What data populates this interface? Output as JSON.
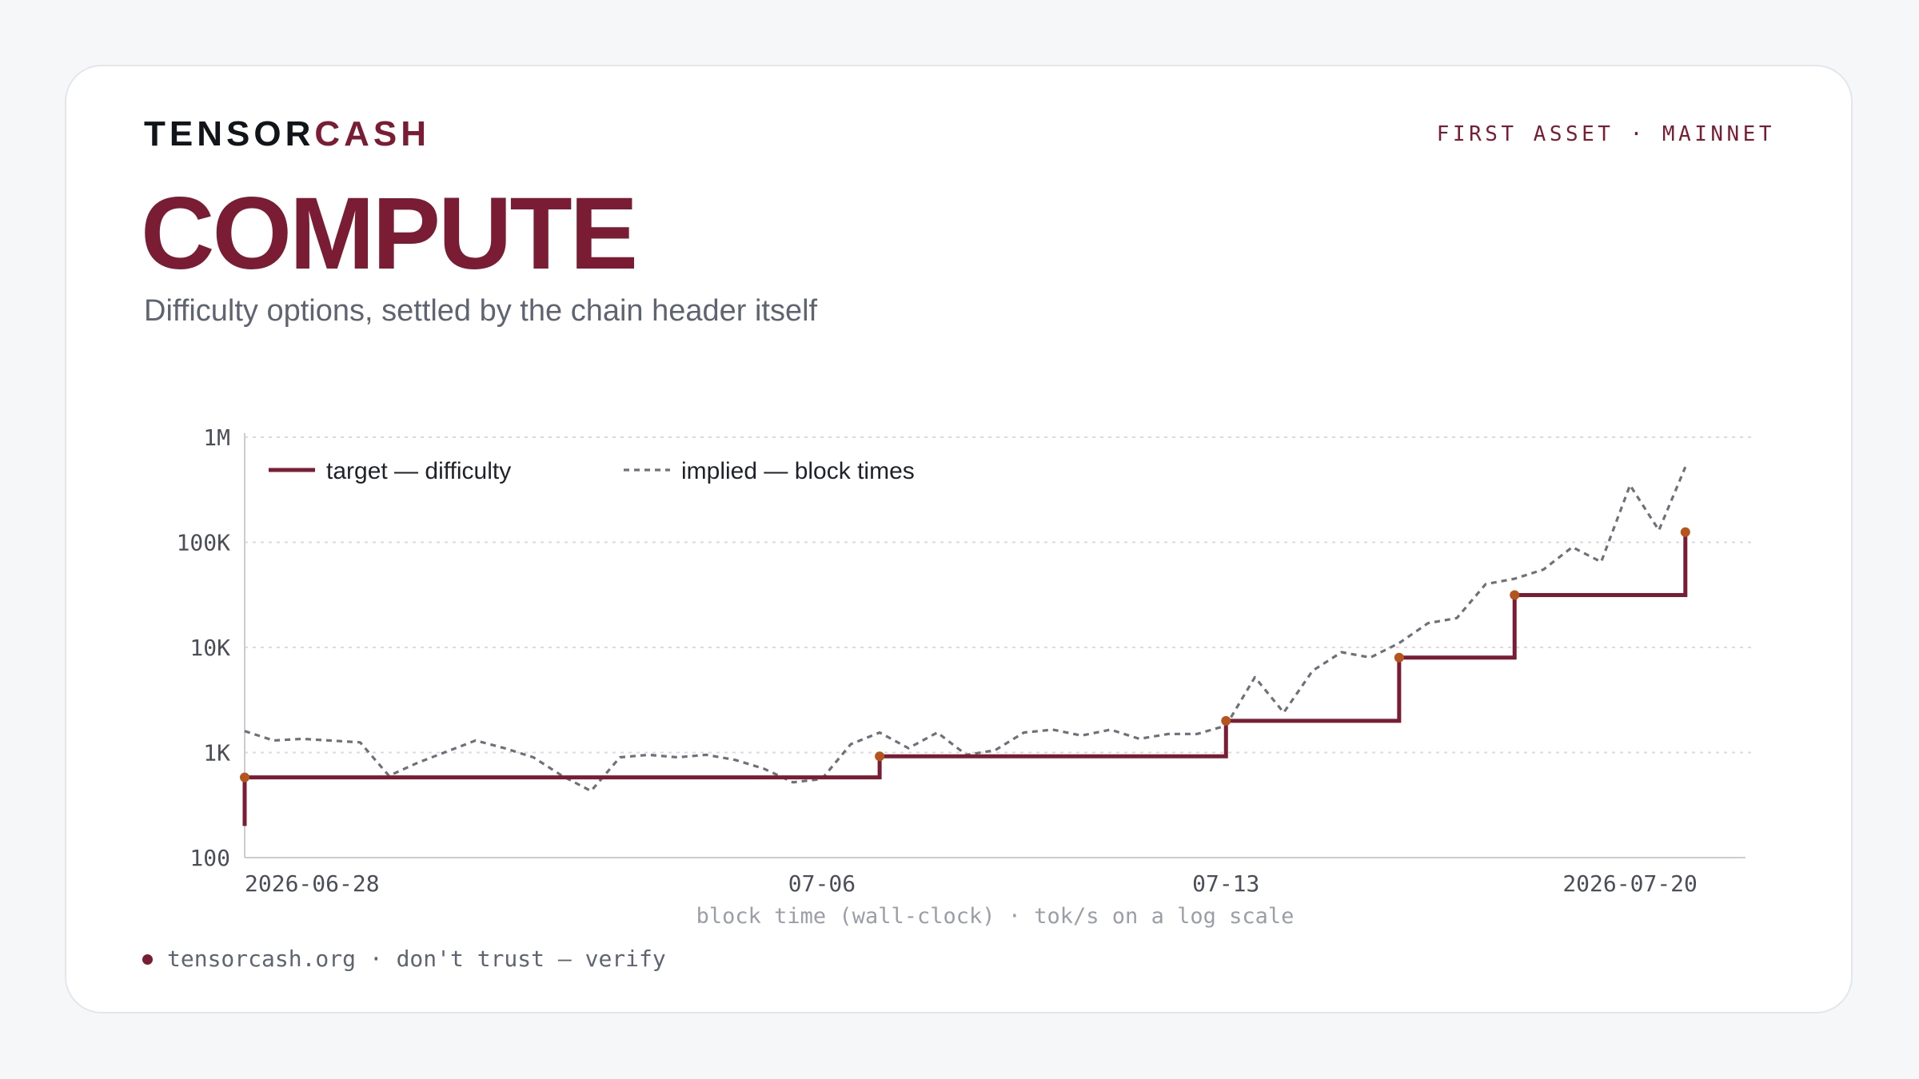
{
  "brand": {
    "part1": "TENSOR",
    "part2": "CASH"
  },
  "network_label": "FIRST ASSET · MAINNET",
  "title": "COMPUTE",
  "subtitle": "Difficulty options, settled by the chain header itself",
  "footer": "tensorcash.org · don't trust — verify",
  "colors": {
    "accent": "#7a1c33",
    "implied": "#6e7178",
    "marker": "#b5541c",
    "grid": "#d9dbe0",
    "axis_text": "#4a4e57"
  },
  "chart_data": {
    "type": "line",
    "xlabel": "block time (wall-clock) · tok/s on a log scale",
    "yscale": "log",
    "ylim": [
      100,
      1000000
    ],
    "xlim": [
      "2026-06-26",
      "2026-07-22"
    ],
    "yticks": [
      {
        "value": 100,
        "label": "100"
      },
      {
        "value": 1000,
        "label": "1K"
      },
      {
        "value": 10000,
        "label": "10K"
      },
      {
        "value": 100000,
        "label": "100K"
      },
      {
        "value": 1000000,
        "label": "1M"
      }
    ],
    "xticks": [
      {
        "value": "2026-06-28",
        "label": "2026-06-28"
      },
      {
        "value": "2026-07-06",
        "label": "07-06"
      },
      {
        "value": "2026-07-13",
        "label": "07-13"
      },
      {
        "value": "2026-07-20",
        "label": "2026-07-20"
      }
    ],
    "grid": true,
    "legend_position": "top-left",
    "series": [
      {
        "name": "target — difficulty",
        "style": "step",
        "x": [
          "2026-06-26",
          "2026-06-26",
          "2026-07-07",
          "2026-07-13",
          "2026-07-16",
          "2026-07-18",
          "2026-07-20 23:00"
        ],
        "values": [
          200,
          580,
          920,
          2000,
          8000,
          31500,
          125000
        ],
        "markers": [
          false,
          true,
          true,
          true,
          true,
          true,
          true
        ]
      },
      {
        "name": "implied — block times",
        "style": "dashed",
        "x": [
          "2026-06-26",
          "2026-06-26 12:00",
          "2026-06-27",
          "2026-06-28",
          "2026-06-28 12:00",
          "2026-06-29",
          "2026-06-30",
          "2026-06-30 12:00",
          "2026-07-01",
          "2026-07-01 12:00",
          "2026-07-02",
          "2026-07-02 12:00",
          "2026-07-03",
          "2026-07-03 12:00",
          "2026-07-04",
          "2026-07-04 12:00",
          "2026-07-05",
          "2026-07-05 12:00",
          "2026-07-06",
          "2026-07-06 12:00",
          "2026-07-07",
          "2026-07-07 12:00",
          "2026-07-08",
          "2026-07-08 12:00",
          "2026-07-09",
          "2026-07-09 12:00",
          "2026-07-10",
          "2026-07-10 12:00",
          "2026-07-11",
          "2026-07-11 12:00",
          "2026-07-12",
          "2026-07-12 12:00",
          "2026-07-13",
          "2026-07-13 12:00",
          "2026-07-14",
          "2026-07-14 12:00",
          "2026-07-15",
          "2026-07-15 12:00",
          "2026-07-16",
          "2026-07-16 12:00",
          "2026-07-17",
          "2026-07-17 12:00",
          "2026-07-18",
          "2026-07-18 12:00",
          "2026-07-19",
          "2026-07-19 12:00",
          "2026-07-20",
          "2026-07-20 12:00",
          "2026-07-20 23:00"
        ],
        "values": [
          1600,
          1300,
          1350,
          1250,
          600,
          800,
          1300,
          1100,
          900,
          600,
          430,
          900,
          950,
          900,
          950,
          850,
          700,
          520,
          560,
          1200,
          1550,
          1100,
          1550,
          950,
          1050,
          1550,
          1650,
          1450,
          1650,
          1350,
          1500,
          1500,
          1800,
          5200,
          2400,
          6000,
          9000,
          8000,
          11000,
          17000,
          19000,
          40000,
          45000,
          55000,
          90000,
          65000,
          350000,
          130000,
          520000
        ]
      }
    ]
  }
}
